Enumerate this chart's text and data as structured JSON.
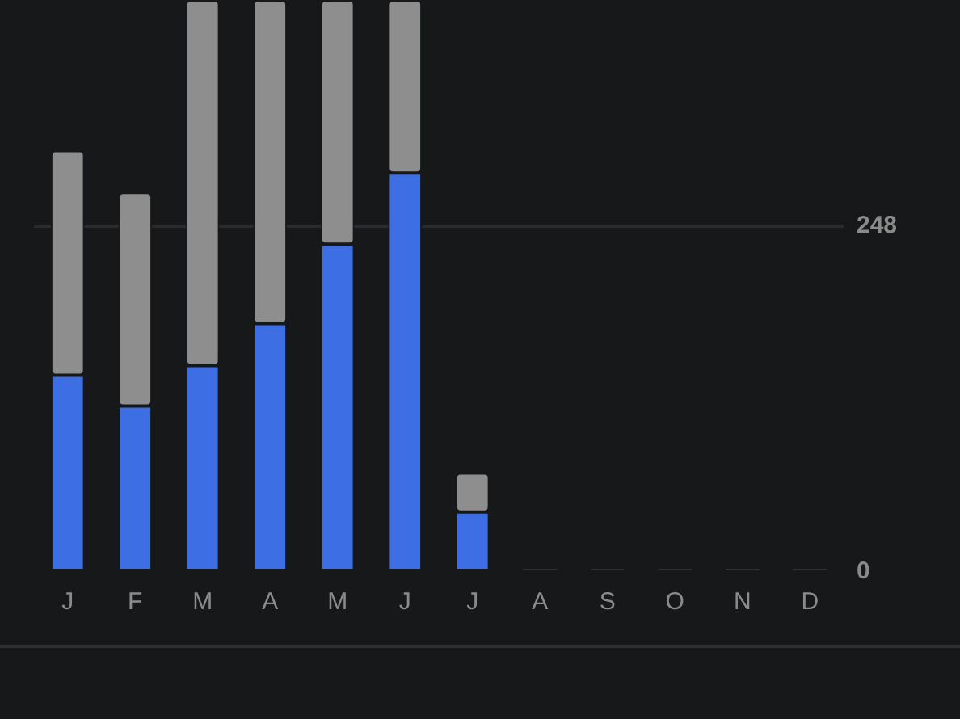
{
  "chart_data": {
    "type": "bar",
    "categories": [
      "J",
      "F",
      "M",
      "A",
      "M",
      "J",
      "J",
      "A",
      "S",
      "O",
      "N",
      "D"
    ],
    "series": [
      {
        "colors": [
          "#3d6ee4",
          "#3d6ee4",
          "#3d6ee4",
          "#3d6ee4",
          "#3d6ee4",
          "#3d6ee4",
          "#3d6ee4",
          "#2f3033",
          "#2f3033",
          "#2f3033",
          "#2f3033",
          "#2f3033"
        ],
        "values": [
          141,
          119,
          148,
          178,
          235,
          286,
          43,
          0,
          0,
          0,
          0,
          0
        ]
      },
      {
        "color": "#8e8e8e",
        "values": [
          161,
          153,
          262,
          232,
          175,
          124,
          28,
          0,
          0,
          0,
          0,
          0
        ]
      }
    ],
    "stacked": true,
    "ylim": [
      0,
      410
    ],
    "yticks": [
      0,
      248
    ],
    "grid": "y",
    "legend": false
  }
}
